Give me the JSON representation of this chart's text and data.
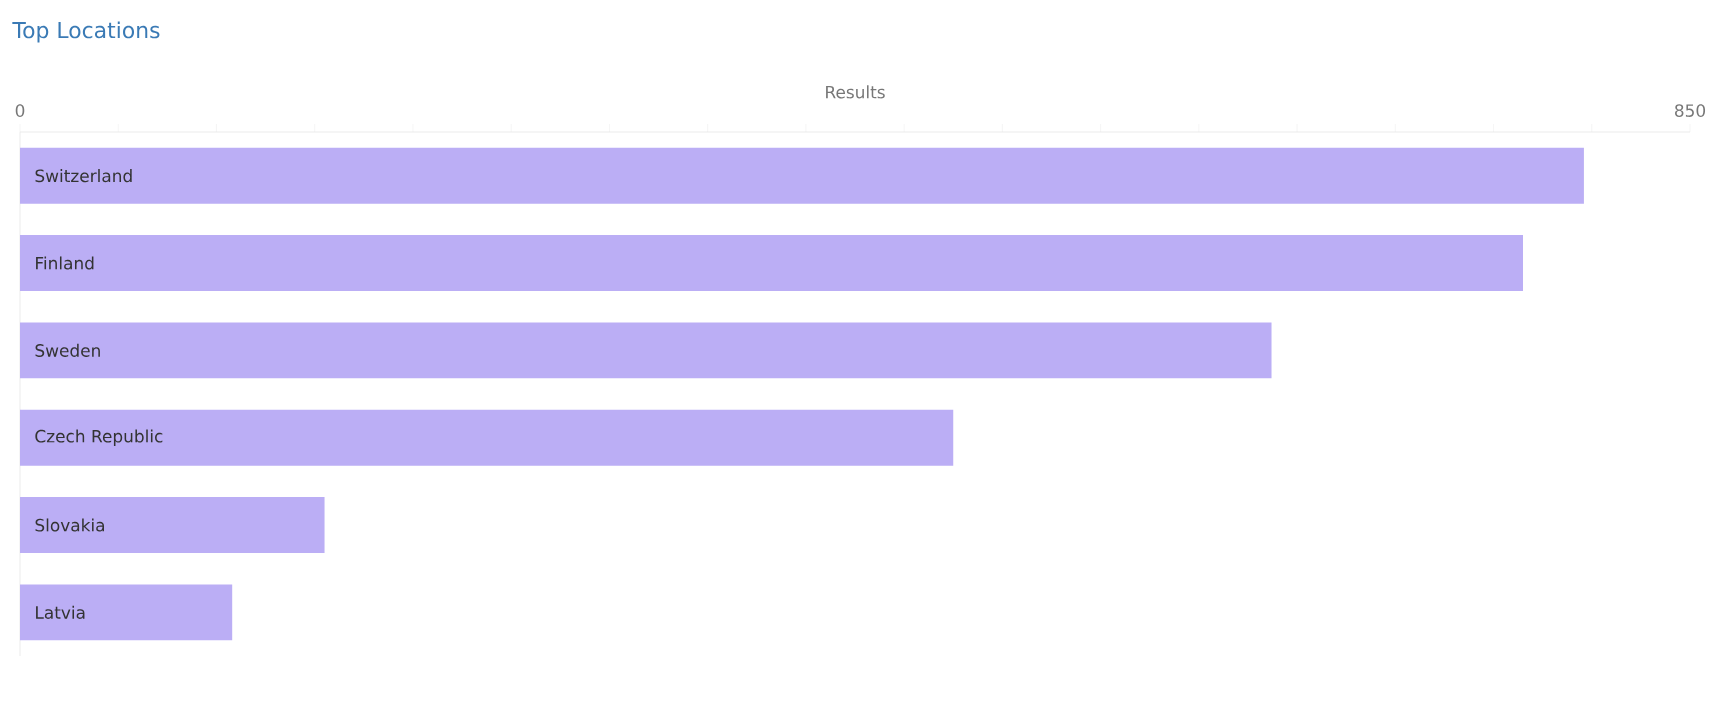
{
  "chart_data": {
    "type": "bar",
    "orientation": "horizontal",
    "title": "Top Locations",
    "xlabel": "Results",
    "categories": [
      "Switzerland",
      "Finland",
      "Sweden",
      "Czech Republic",
      "Slovakia",
      "Latvia"
    ],
    "values": [
      796,
      765,
      637,
      475,
      155,
      108
    ],
    "color": "#bbaef5",
    "xlim": [
      0,
      850
    ],
    "xticks": [
      0,
      {
        "value": 50,
        "label": null
      },
      {
        "value": 100,
        "label": null
      },
      {
        "value": 150,
        "label": null
      },
      {
        "value": 200,
        "label": null
      },
      {
        "value": 250,
        "label": null
      },
      {
        "value": 300,
        "label": null
      },
      {
        "value": 350,
        "label": null
      },
      {
        "value": 400,
        "label": null
      },
      {
        "value": 450,
        "label": null
      },
      {
        "value": 500,
        "label": null
      },
      {
        "value": 550,
        "label": null
      },
      {
        "value": 600,
        "label": null
      },
      {
        "value": 650,
        "label": null
      },
      {
        "value": 700,
        "label": null
      },
      {
        "value": 750,
        "label": null
      },
      {
        "value": 800,
        "label": null
      },
      850
    ],
    "grid": false
  }
}
